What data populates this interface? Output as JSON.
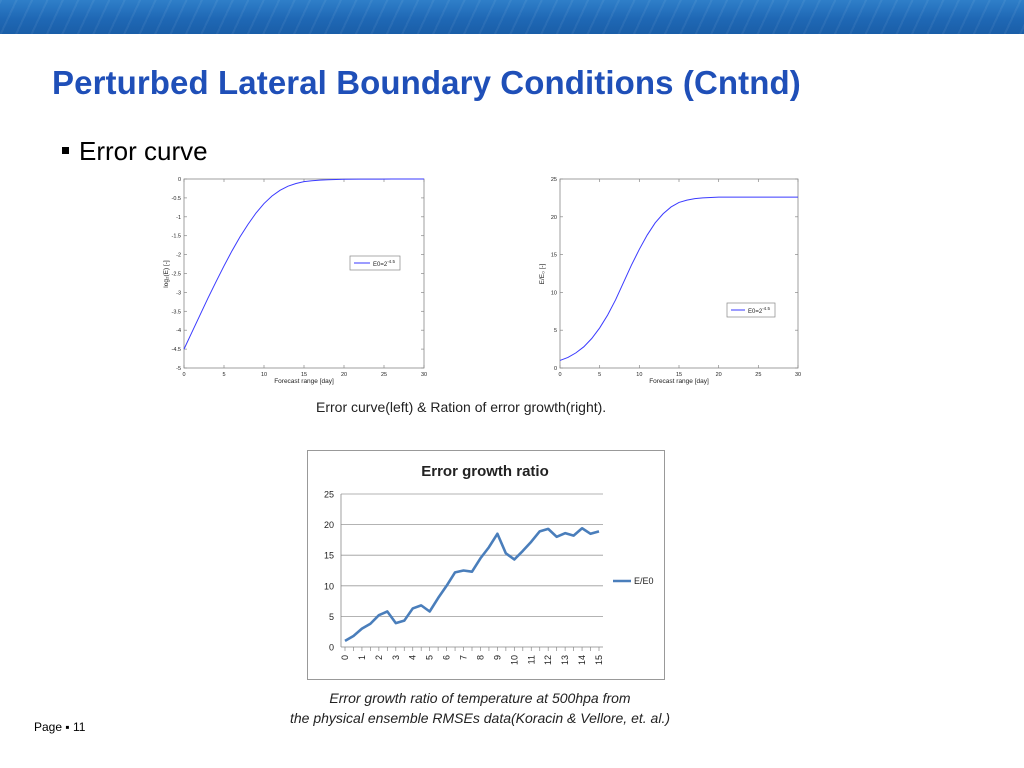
{
  "header": {
    "color": "#1f68b5"
  },
  "title": "Perturbed Lateral Boundary Conditions (Cntnd)",
  "bullet": "Error curve",
  "caption_top": "Error curve(left) & Ration of error growth(right).",
  "caption_bottom": {
    "line1": "Error growth ratio of temperature at 500hpa from",
    "line2": "the physical ensemble RMSEs data(Koracin & Vellore, et. al.)"
  },
  "footer": {
    "page_label": "Page",
    "page_number": "11"
  },
  "chart_data": [
    {
      "type": "line",
      "xlabel": "Forecast range [day]",
      "ylabel": "log₂(E) [-]",
      "xlim": [
        0,
        30
      ],
      "ylim": [
        -5,
        0
      ],
      "x_ticks": [
        "0",
        "5",
        "10",
        "15",
        "20",
        "25",
        "30"
      ],
      "y_ticks": [
        "0",
        "-0.5",
        "-1",
        "-1.5",
        "-2",
        "-2.5",
        "-3",
        "-3.5",
        "-4",
        "-4.5",
        "-5"
      ],
      "grid": false,
      "legend_position": "right",
      "series": [
        {
          "name": "E0=2⁻⁴᐀⁵",
          "legend_text": "E0=2",
          "legend_sup": "-4.5",
          "color": "#3a3aff",
          "x": [
            0,
            1,
            2,
            3,
            4,
            5,
            6,
            7,
            8,
            9,
            10,
            11,
            12,
            13,
            14,
            15,
            16,
            17,
            18,
            19,
            20,
            22,
            24,
            26,
            28,
            30
          ],
          "y": [
            -4.5,
            -4.05,
            -3.6,
            -3.15,
            -2.72,
            -2.3,
            -1.9,
            -1.53,
            -1.2,
            -0.9,
            -0.65,
            -0.45,
            -0.3,
            -0.19,
            -0.12,
            -0.07,
            -0.045,
            -0.03,
            -0.02,
            -0.013,
            -0.008,
            -0.004,
            -0.002,
            -0.001,
            0,
            0
          ]
        }
      ]
    },
    {
      "type": "line",
      "xlabel": "Forecast range [day]",
      "ylabel": "E/E₀ [-]",
      "xlim": [
        0,
        30
      ],
      "ylim": [
        0,
        25
      ],
      "x_ticks": [
        "0",
        "5",
        "10",
        "15",
        "20",
        "25",
        "30"
      ],
      "y_ticks": [
        "0",
        "5",
        "10",
        "15",
        "20",
        "25"
      ],
      "grid": false,
      "legend_position": "bottom-right",
      "series": [
        {
          "name": "E0=2⁻⁴᐀⁵",
          "legend_text": "E0=2",
          "legend_sup": "-4.5",
          "color": "#3a3aff",
          "x": [
            0,
            1,
            2,
            3,
            4,
            5,
            6,
            7,
            8,
            9,
            10,
            11,
            12,
            13,
            14,
            15,
            16,
            17,
            18,
            19,
            20,
            22,
            24,
            26,
            28,
            30
          ],
          "y": [
            1.0,
            1.4,
            2.0,
            2.8,
            3.9,
            5.3,
            7.0,
            9.0,
            11.3,
            13.6,
            15.7,
            17.6,
            19.2,
            20.4,
            21.3,
            21.9,
            22.2,
            22.4,
            22.5,
            22.55,
            22.6,
            22.6,
            22.6,
            22.6,
            22.6,
            22.6
          ]
        }
      ]
    },
    {
      "type": "line",
      "title": "Error growth ratio",
      "categories": [
        "0",
        "0.5",
        "1",
        "1.5",
        "2",
        "2.5",
        "3",
        "3.5",
        "4",
        "4.5",
        "5",
        "5.5",
        "6",
        "6.5",
        "7",
        "7.5",
        "8",
        "8.5",
        "9",
        "9.5",
        "10",
        "10.5",
        "11",
        "11.5",
        "12",
        "12.5",
        "13",
        "13.5",
        "14",
        "14.5",
        "15"
      ],
      "x_ticks": [
        "0",
        "1",
        "2",
        "3",
        "4",
        "5",
        "6",
        "7",
        "8",
        "9",
        "10",
        "11",
        "12",
        "13",
        "14",
        "15"
      ],
      "y_ticks": [
        "0",
        "5",
        "10",
        "15",
        "20",
        "25"
      ],
      "ylim": [
        0,
        25
      ],
      "grid": true,
      "legend_position": "right",
      "series": [
        {
          "name": "E/E0",
          "color": "#4a7ebb",
          "values": [
            1.0,
            1.8,
            3.0,
            3.8,
            5.2,
            5.8,
            3.9,
            4.3,
            6.3,
            6.8,
            5.8,
            8.0,
            10.0,
            12.2,
            12.5,
            12.3,
            14.5,
            16.3,
            18.5,
            15.3,
            14.3,
            15.7,
            17.2,
            18.9,
            19.3,
            18.0,
            18.6,
            18.2,
            19.4,
            18.5,
            18.9
          ]
        }
      ]
    }
  ]
}
